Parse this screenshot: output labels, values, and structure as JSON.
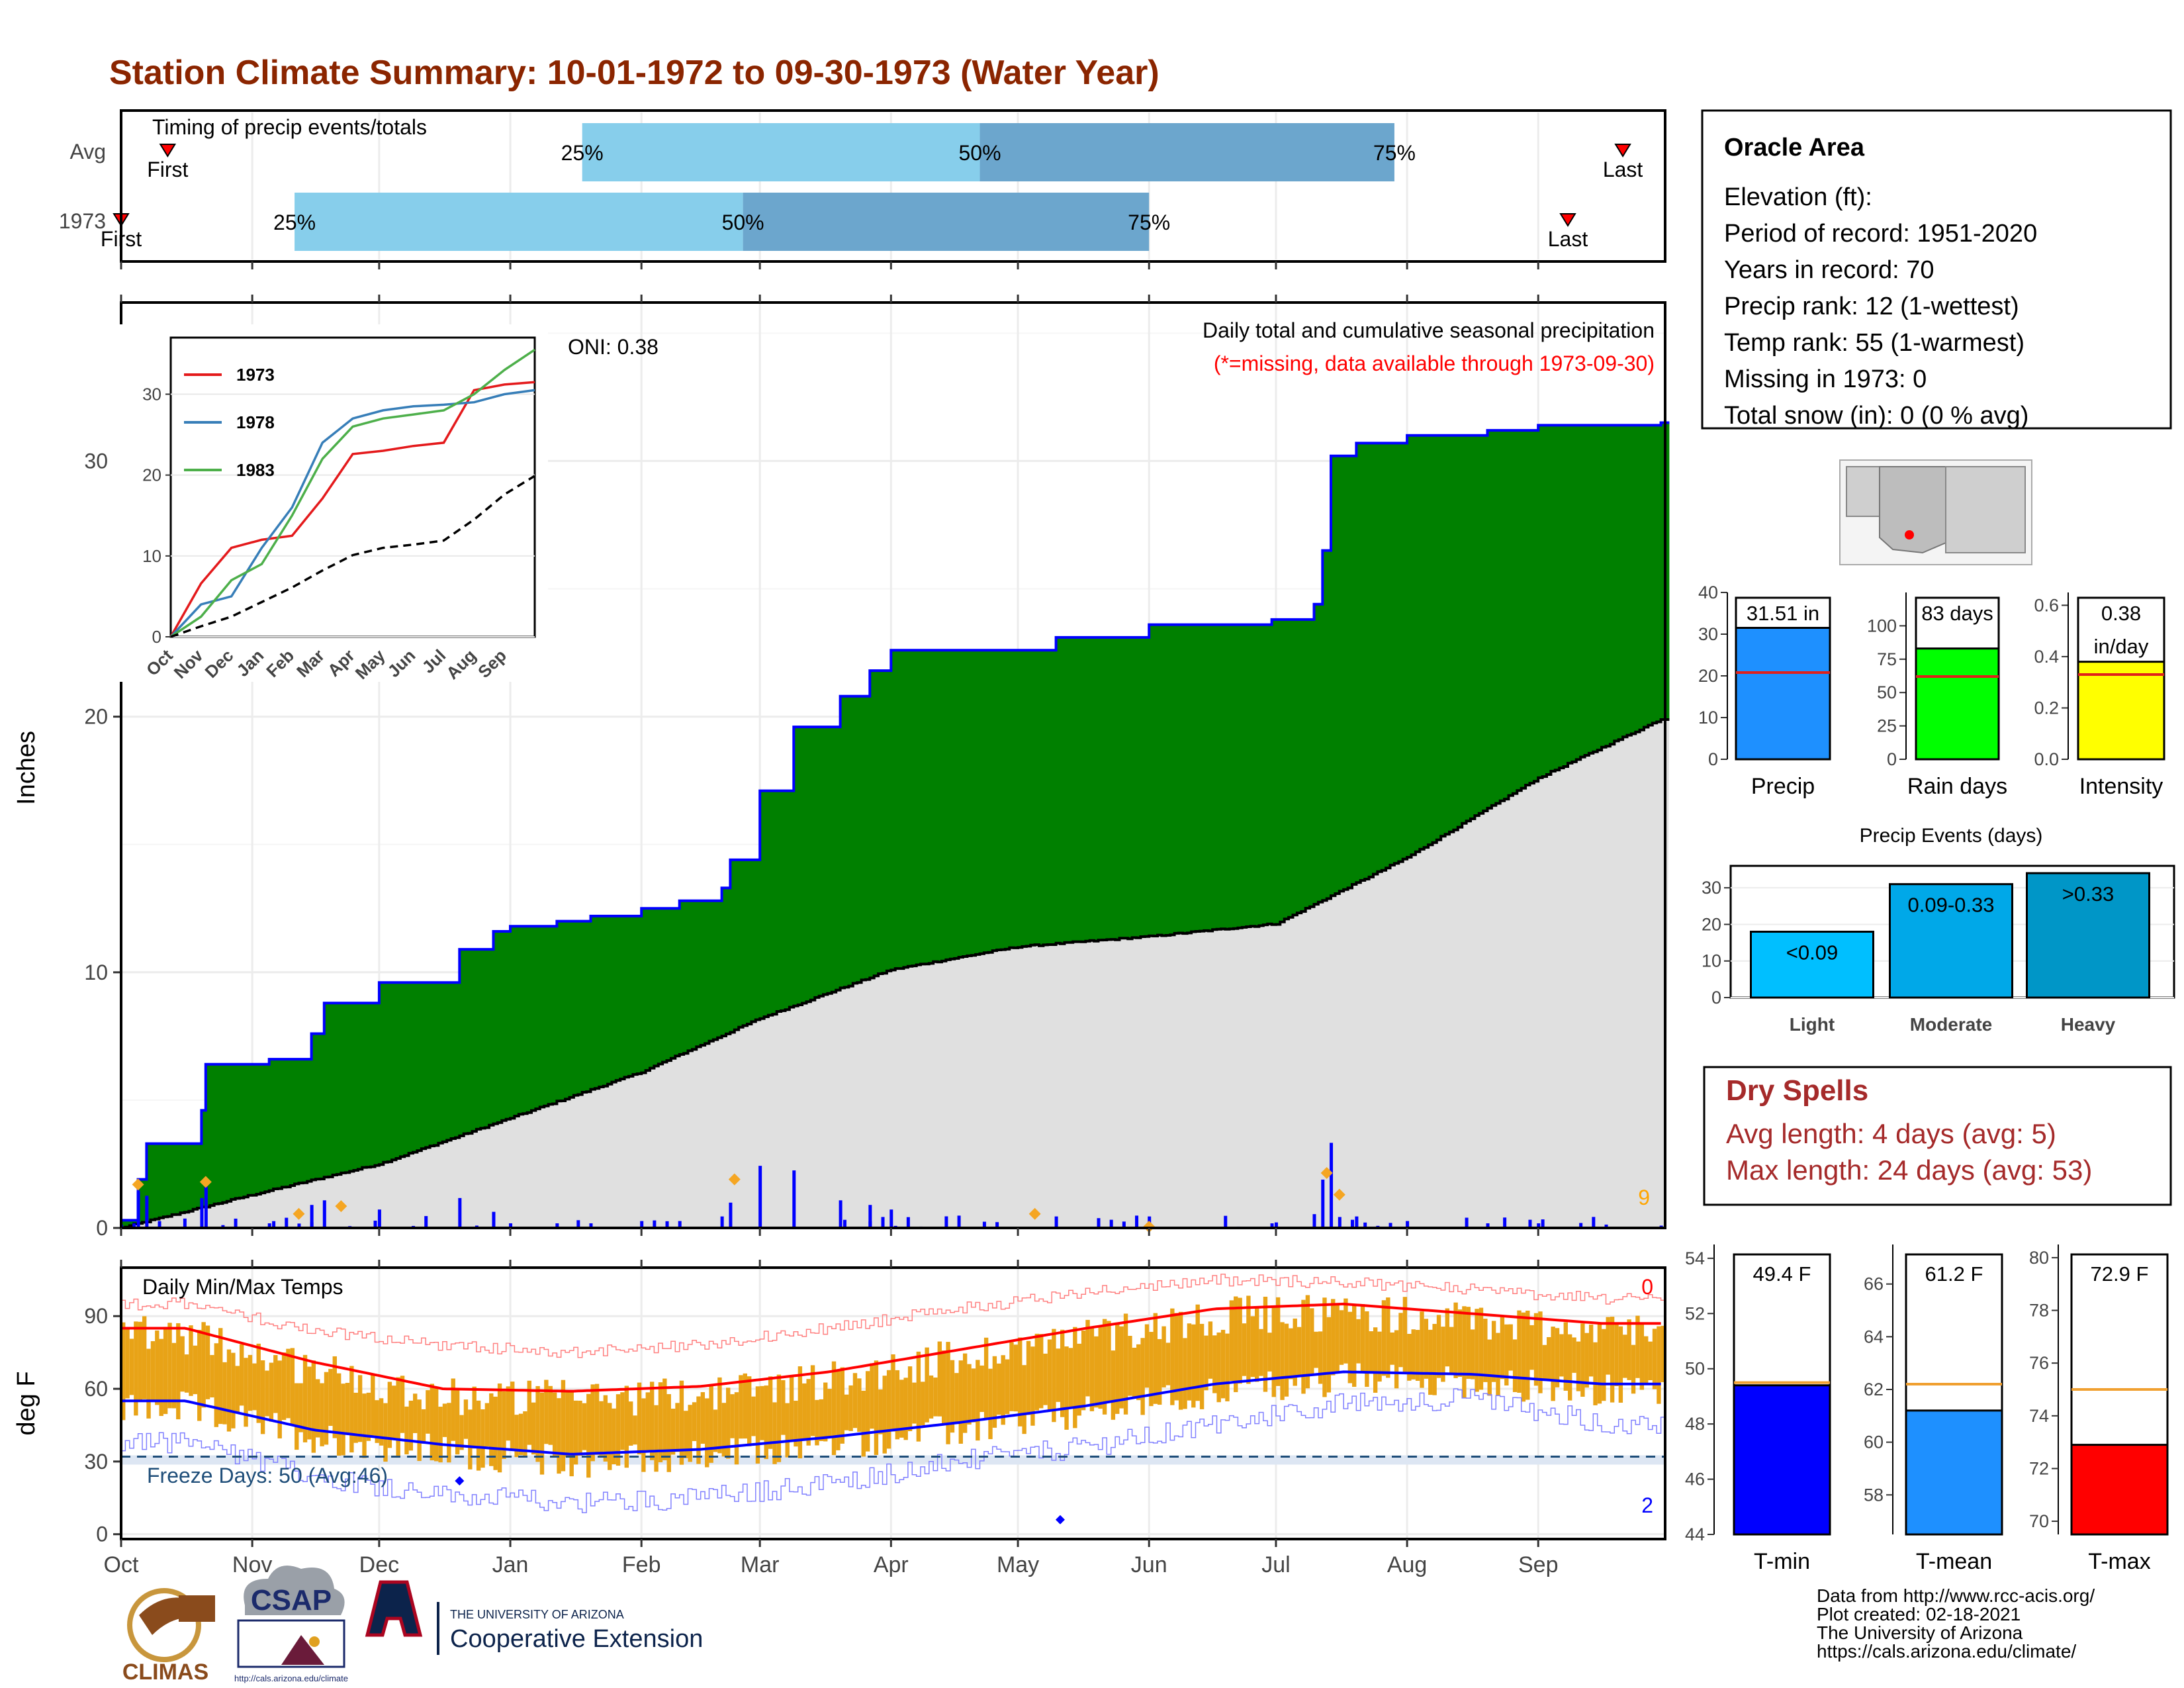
{
  "title": "Station Climate Summary: 10-01-1972 to 09-30-1973 (Water Year)",
  "colors": {
    "title": "#8b2500",
    "green": "#008000",
    "blue": "#0000ff",
    "gray_fill": "#e0e0e0",
    "light_blue": "#87ceeb",
    "mid_blue": "#6ca6cd",
    "orange": "#e8a317",
    "red": "#ff0000",
    "dry_red": "#a52a2a",
    "precip_bar": "#1e90ff",
    "rain_bar": "#00ff00",
    "intensity_bar": "#ffff00"
  },
  "timing_panel": {
    "header": "Timing of precip events/totals",
    "row_labels": [
      "Avg",
      "1973"
    ],
    "avg": {
      "first_label": "First",
      "last_label": "Last",
      "p25_label": "25%",
      "p50_label": "50%",
      "p75_label": "75%",
      "first_date": "1972-10-12",
      "p25_date": "1973-01-18",
      "p50_date": "1973-04-22",
      "p75_date": "1973-07-29",
      "last_date": "1973-09-21"
    },
    "y1973": {
      "first_label": "First",
      "last_label": "Last",
      "p25_label": "25%",
      "p50_label": "50%",
      "p75_label": "75%",
      "first_date": "1972-10-01",
      "p25_date": "1972-11-11",
      "p50_date": "1973-02-25",
      "p75_date": "1973-06-01",
      "last_date": "1973-09-08"
    }
  },
  "precip_panel": {
    "ylabel": "Inches",
    "oni_label": "ONI: 0.38",
    "subtitle": "Daily total and cumulative seasonal precipitation",
    "missing_note": "(*=missing, data available through 1973-09-30)",
    "corner_count": "9"
  },
  "inset": {
    "legend": [
      "1973",
      "1978",
      "1983"
    ],
    "months": [
      "Oct",
      "Nov",
      "Dec",
      "Jan",
      "Feb",
      "Mar",
      "Apr",
      "May",
      "Jun",
      "Jul",
      "Aug",
      "Sep"
    ]
  },
  "temp_panel": {
    "header": "Daily Min/Max Temps",
    "ylabel": "deg F",
    "freeze_label": "Freeze Days: 50 (Avg:46)",
    "top_count": "0",
    "bottom_count": "2"
  },
  "x_months": [
    "Oct",
    "Nov",
    "Dec",
    "Jan",
    "Feb",
    "Mar",
    "Apr",
    "May",
    "Jun",
    "Jul",
    "Aug",
    "Sep"
  ],
  "station": {
    "name": "Oracle Area",
    "lines": [
      "Elevation (ft):",
      "Period of record: 1951-2020",
      "Years in record: 70",
      "Precip rank: 12 (1-wettest)",
      "Temp rank: 55 (1-warmest)",
      "Missing in 1973: 0",
      "Total snow (in): 0 (0 % avg)"
    ]
  },
  "stats": {
    "precip": {
      "value_label": "31.51 in",
      "xlabel": "Precip"
    },
    "rain_days": {
      "value_label": "83 days",
      "xlabel": "Rain days"
    },
    "intensity": {
      "value_line1": "0.38",
      "value_line2": "in/day",
      "xlabel": "Intensity"
    }
  },
  "events": {
    "title": "Precip Events (days)",
    "categories": [
      "Light",
      "Moderate",
      "Heavy"
    ],
    "labels": [
      "<0.09",
      "0.09-0.33",
      ">0.33"
    ]
  },
  "dry_spells": {
    "title": "Dry Spells",
    "avg_line": "Avg length: 4 days (avg: 5)",
    "max_line": "Max length: 24 days (avg: 53)"
  },
  "temps": {
    "tmin": {
      "label": "49.4 F",
      "xlabel": "T-min"
    },
    "tmean": {
      "label": "61.2 F",
      "xlabel": "T-mean"
    },
    "tmax": {
      "label": "72.9 F",
      "xlabel": "T-max"
    }
  },
  "logos": {
    "climas": "CLIMAS",
    "csap": "CSAP",
    "csap_url": "http://cals.arizona.edu/climate",
    "ua_small": "THE UNIVERSITY OF ARIZONA",
    "ua_big": "Cooperative Extension"
  },
  "footer": [
    "Data from http://www.rcc-acis.org/",
    "Plot created: 02-18-2021",
    "The University of Arizona",
    "https://cals.arizona.edu/climate/"
  ],
  "chart_data": [
    {
      "type": "area",
      "name": "cumulative precipitation",
      "ylabel": "Inches",
      "ylim": [
        0,
        35
      ],
      "series": [
        {
          "name": "1973",
          "x": [
            "1972-10-01",
            "1972-10-05",
            "1972-10-07",
            "1972-10-20",
            "1972-10-21",
            "1972-11-05",
            "1972-11-15",
            "1972-11-18",
            "1972-12-01",
            "1972-12-20",
            "1972-12-28",
            "1973-01-01",
            "1973-01-12",
            "1973-01-20",
            "1973-02-01",
            "1973-02-10",
            "1973-02-20",
            "1973-02-22",
            "1973-03-01",
            "1973-03-09",
            "1973-03-20",
            "1973-03-27",
            "1973-04-01",
            "1973-04-15",
            "1973-05-04",
            "1973-05-10",
            "1973-06-01",
            "1973-06-15",
            "1973-06-30",
            "1973-07-10",
            "1973-07-12",
            "1973-07-14",
            "1973-07-20",
            "1973-08-01",
            "1973-08-20",
            "1973-09-01",
            "1973-09-30"
          ],
          "y": [
            0.3,
            1.9,
            3.3,
            4.6,
            6.4,
            6.6,
            7.6,
            8.8,
            9.6,
            10.9,
            11.6,
            11.8,
            12.0,
            12.2,
            12.5,
            12.8,
            13.3,
            14.4,
            17.1,
            19.6,
            20.8,
            21.8,
            22.6,
            22.6,
            22.6,
            23.1,
            23.6,
            23.6,
            23.8,
            24.4,
            26.5,
            30.2,
            30.7,
            31.0,
            31.2,
            31.4,
            31.5
          ]
        },
        {
          "name": "average",
          "x": [
            "1972-10-01",
            "1972-11-01",
            "1972-12-01",
            "1973-01-01",
            "1973-02-01",
            "1973-03-01",
            "1973-04-01",
            "1973-05-01",
            "1973-06-01",
            "1973-07-01",
            "1973-08-01",
            "1973-09-01",
            "1973-09-30"
          ],
          "y": [
            0.0,
            1.3,
            2.5,
            4.3,
            6.1,
            8.2,
            10.1,
            11.0,
            11.4,
            11.9,
            14.5,
            17.6,
            19.9
          ]
        }
      ]
    },
    {
      "type": "line",
      "name": "inset cumulative comparison",
      "ylim": [
        0,
        35
      ],
      "series": [
        {
          "name": "1973",
          "x": [
            0,
            1,
            2,
            3,
            4,
            5,
            6,
            7,
            8,
            9,
            10,
            11,
            12
          ],
          "y": [
            0,
            6.6,
            11.0,
            12.0,
            12.5,
            17.1,
            22.6,
            23.0,
            23.6,
            24.0,
            30.5,
            31.2,
            31.5
          ]
        },
        {
          "name": "1978",
          "x": [
            0,
            1,
            2,
            3,
            4,
            5,
            6,
            7,
            8,
            9,
            10,
            11,
            12
          ],
          "y": [
            0,
            4.0,
            5.0,
            11.0,
            16.0,
            24.0,
            27.0,
            28.0,
            28.5,
            28.7,
            29.0,
            30.0,
            30.5
          ]
        },
        {
          "name": "1983",
          "x": [
            0,
            1,
            2,
            3,
            4,
            5,
            6,
            7,
            8,
            9,
            10,
            11,
            12
          ],
          "y": [
            0,
            2.5,
            7.0,
            9.0,
            15.0,
            22.0,
            26.0,
            27.0,
            27.5,
            28.0,
            30.0,
            33.0,
            35.5
          ]
        },
        {
          "name": "average",
          "x": [
            0,
            1,
            2,
            3,
            4,
            5,
            6,
            7,
            8,
            9,
            10,
            11,
            12
          ],
          "y": [
            0,
            1.3,
            2.5,
            4.3,
            6.1,
            8.2,
            10.1,
            11.0,
            11.4,
            11.9,
            14.5,
            17.6,
            19.9
          ]
        }
      ]
    },
    {
      "type": "line",
      "name": "daily temperatures",
      "ylabel": "deg F",
      "ylim": [
        0,
        110
      ],
      "freeze_line": 32,
      "monthly": {
        "months": [
          "Oct",
          "Nov",
          "Dec",
          "Jan",
          "Feb",
          "Mar",
          "Apr",
          "May",
          "Jun",
          "Jul",
          "Aug",
          "Sep"
        ],
        "avg_max": [
          85,
          71,
          60,
          59,
          61,
          67,
          76,
          85,
          93,
          95,
          91,
          87
        ],
        "avg_min": [
          55,
          43,
          37,
          33,
          35,
          40,
          46,
          53,
          62,
          67,
          66,
          62
        ],
        "record_max": [
          95,
          84,
          78,
          75,
          78,
          85,
          93,
          100,
          105,
          104,
          101,
          97
        ],
        "record_min": [
          38,
          24,
          16,
          13,
          15,
          21,
          30,
          36,
          45,
          54,
          56,
          46
        ]
      }
    },
    {
      "type": "bar",
      "name": "precip totals",
      "categories": [
        "Precip"
      ],
      "values": [
        31.51
      ],
      "average": [
        20.8
      ],
      "ylim": [
        0,
        40
      ]
    },
    {
      "type": "bar",
      "name": "rain days",
      "categories": [
        "Rain days"
      ],
      "values": [
        83
      ],
      "average": [
        62
      ],
      "ylim": [
        0,
        125
      ]
    },
    {
      "type": "bar",
      "name": "intensity",
      "categories": [
        "Intensity"
      ],
      "values": [
        0.38
      ],
      "average": [
        0.33
      ],
      "ylim": [
        0,
        0.65
      ]
    },
    {
      "type": "bar",
      "name": "precip events",
      "title": "Precip Events (days)",
      "categories": [
        "Light",
        "Moderate",
        "Heavy"
      ],
      "values": [
        18,
        31,
        34
      ],
      "ylim": [
        0,
        35
      ]
    },
    {
      "type": "bar",
      "name": "temperature means",
      "categories": [
        "T-min",
        "T-mean",
        "T-max"
      ],
      "values": [
        49.4,
        61.2,
        72.9
      ],
      "average": [
        49.5,
        62.2,
        75.0
      ],
      "ylims": [
        [
          44,
          54.5
        ],
        [
          56.5,
          67.5
        ],
        [
          69.5,
          80.5
        ]
      ]
    }
  ]
}
